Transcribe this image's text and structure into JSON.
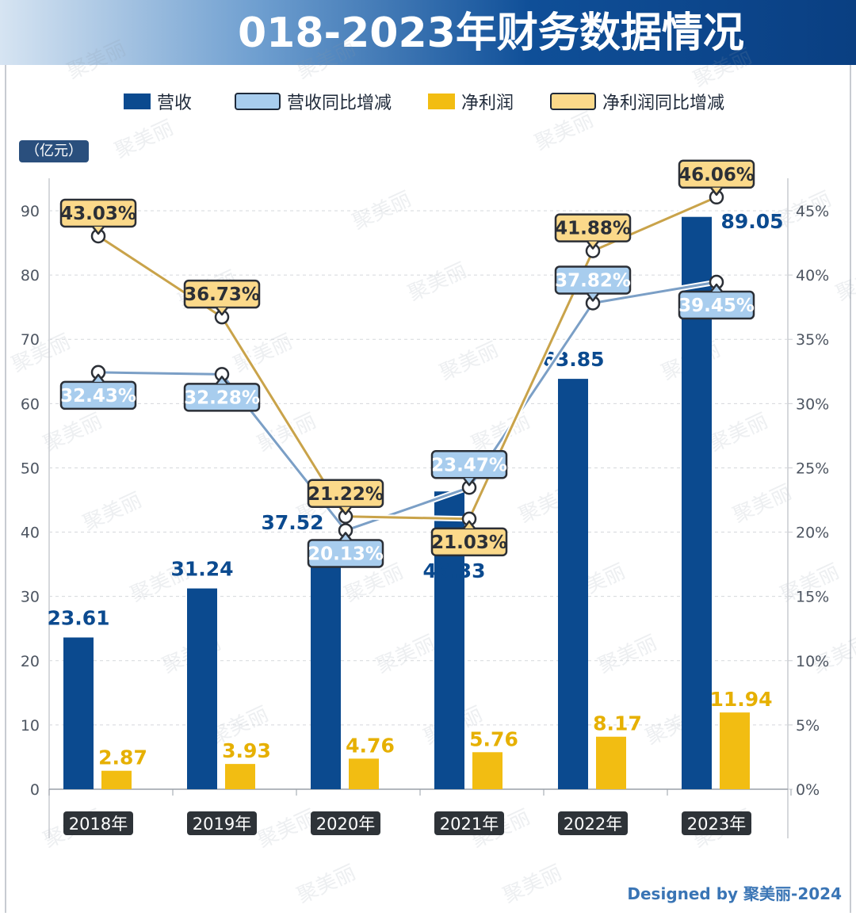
{
  "page": {
    "title": "018-2023年财务数据情况",
    "unit": "（亿元）",
    "credit": "Designed by 聚美丽-2024",
    "watermark": "聚美丽"
  },
  "colors": {
    "revenue": "#0b4a8f",
    "net_profit": "#f2bd12",
    "revenue_yoy_fill": "#a8cdee",
    "revenue_yoy_line": "#7b9fc6",
    "profit_yoy_fill": "#fbd98a",
    "profit_yoy_line": "#c9a34a",
    "header_dark": "#0a3f82"
  },
  "chart_data": {
    "type": "bar",
    "categories": [
      "2018年",
      "2019年",
      "2020年",
      "2021年",
      "2022年",
      "2023年"
    ],
    "ylim": [
      0,
      90
    ],
    "y_ticks": [
      "0",
      "10",
      "20",
      "30",
      "40",
      "50",
      "60",
      "70",
      "80",
      "90"
    ],
    "y2lim": [
      0,
      45
    ],
    "y2_ticks": [
      "0%",
      "5%",
      "10%",
      "15%",
      "20%",
      "25%",
      "30%",
      "35%",
      "40%",
      "45%"
    ],
    "ylabel": "（亿元）",
    "grid": true,
    "legend_position": "top",
    "series": [
      {
        "name": "营收",
        "type": "bar",
        "axis": "left",
        "values": [
          23.61,
          31.24,
          37.52,
          46.33,
          63.85,
          89.05
        ],
        "labels": [
          "23.61",
          "31.24",
          "37.52",
          "46.33",
          "63.85",
          "89.05"
        ]
      },
      {
        "name": "营收同比增减",
        "type": "line",
        "axis": "right",
        "values": [
          32.43,
          32.28,
          20.13,
          23.47,
          37.82,
          39.45
        ],
        "labels": [
          "32.43%",
          "32.28%",
          "20.13%",
          "23.47%",
          "37.82%",
          "39.45%"
        ]
      },
      {
        "name": "净利润",
        "type": "bar",
        "axis": "left",
        "values": [
          2.87,
          3.93,
          4.76,
          5.76,
          8.17,
          11.94
        ],
        "labels": [
          "2.87",
          "3.93",
          "4.76",
          "5.76",
          "8.17",
          "11.94"
        ]
      },
      {
        "name": "净利润同比增减",
        "type": "line",
        "axis": "right",
        "values": [
          43.03,
          36.73,
          21.22,
          21.03,
          41.88,
          46.06
        ],
        "labels": [
          "43.03%",
          "36.73%",
          "21.22%",
          "21.03%",
          "41.88%",
          "46.06%"
        ]
      }
    ]
  }
}
